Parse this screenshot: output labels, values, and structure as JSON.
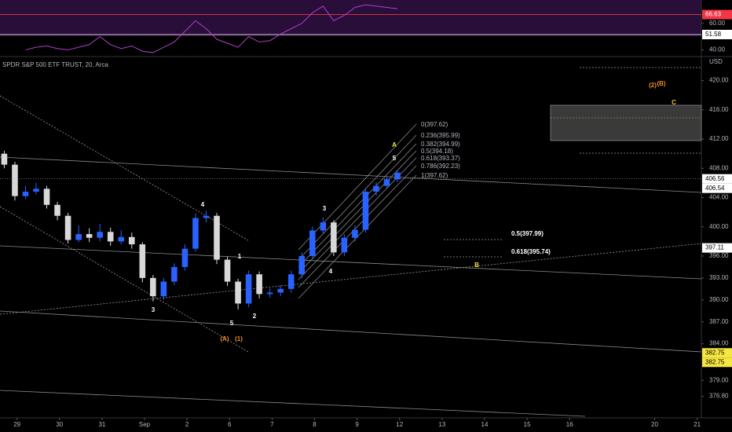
{
  "chart_data": {
    "type": "candlestick",
    "title": "SPDR S&P 500 ETF TRUST, 20, Arca",
    "currency": "USD",
    "up_color": "#2962ff",
    "down_color": "#d8d8d8",
    "ylim": [
      373,
      422
    ],
    "yticks": [
      {
        "value": 420,
        "label": "420.00"
      },
      {
        "value": 416,
        "label": "416.00"
      },
      {
        "value": 412,
        "label": "412.00"
      },
      {
        "value": 408,
        "label": "408.00"
      },
      {
        "value": 404,
        "label": "404.00"
      },
      {
        "value": 400,
        "label": "400.00"
      },
      {
        "value": 396,
        "label": "396.00"
      },
      {
        "value": 393,
        "label": "393.00"
      },
      {
        "value": 390,
        "label": "390.00"
      },
      {
        "value": 387,
        "label": "387.00"
      },
      {
        "value": 384,
        "label": "384.00"
      },
      {
        "value": 379,
        "label": "379.00"
      },
      {
        "value": 376.8,
        "label": "376.80"
      }
    ],
    "xlim": [
      -0.4,
      16.1
    ],
    "xticks": [
      {
        "value": 0,
        "label": "29"
      },
      {
        "value": 1,
        "label": "30"
      },
      {
        "value": 2,
        "label": "31"
      },
      {
        "value": 3,
        "label": "Sep"
      },
      {
        "value": 4,
        "label": "2"
      },
      {
        "value": 5,
        "label": "6"
      },
      {
        "value": 6,
        "label": "7"
      },
      {
        "value": 7,
        "label": "8"
      },
      {
        "value": 8,
        "label": "9"
      },
      {
        "value": 9,
        "label": "12"
      },
      {
        "value": 10,
        "label": "13"
      },
      {
        "value": 11,
        "label": "14"
      },
      {
        "value": 12,
        "label": "15"
      },
      {
        "value": 13,
        "label": "16"
      },
      {
        "value": 15,
        "label": "20"
      },
      {
        "value": 16,
        "label": "21"
      }
    ],
    "x": [
      -0.3,
      -0.05,
      0.2,
      0.45,
      0.7,
      0.95,
      1.2,
      1.45,
      1.7,
      1.95,
      2.2,
      2.45,
      2.7,
      2.95,
      3.2,
      3.45,
      3.7,
      3.95,
      4.2,
      4.45,
      4.7,
      4.95,
      5.2,
      5.45,
      5.7,
      5.95,
      6.2,
      6.45,
      6.7,
      6.95,
      7.2,
      7.45,
      7.7,
      7.95,
      8.2,
      8.45,
      8.7,
      8.95
    ],
    "open": [
      410.0,
      408.5,
      404.2,
      404.8,
      405.2,
      403.0,
      401.5,
      398.2,
      399.0,
      398.5,
      399.3,
      398.0,
      398.6,
      397.6,
      393.0,
      390.5,
      392.5,
      394.5,
      397.0,
      401.2,
      401.5,
      395.5,
      392.5,
      389.5,
      393.5,
      390.8,
      391.0,
      391.5,
      393.5,
      396.0,
      399.5,
      400.6,
      396.5,
      398.5,
      399.6,
      404.8,
      405.6,
      406.5
    ],
    "high": [
      410.4,
      408.9,
      405.6,
      406.0,
      405.6,
      403.4,
      401.9,
      400.2,
      399.8,
      400.4,
      399.9,
      399.5,
      399.2,
      397.9,
      393.4,
      393.0,
      395.0,
      397.6,
      401.8,
      402.2,
      401.9,
      395.9,
      392.9,
      394.0,
      393.9,
      391.6,
      392.0,
      394.0,
      396.5,
      400.0,
      401.3,
      400.9,
      399.0,
      400.2,
      405.3,
      406.1,
      406.9,
      407.8
    ],
    "low": [
      408.0,
      403.6,
      403.8,
      404.4,
      402.5,
      400.9,
      397.7,
      397.9,
      397.9,
      398.0,
      397.4,
      397.6,
      397.0,
      392.4,
      389.8,
      390.0,
      392.0,
      394.0,
      396.6,
      400.6,
      394.9,
      391.9,
      388.7,
      389.0,
      390.2,
      390.3,
      390.5,
      391.0,
      393.0,
      395.6,
      399.0,
      396.0,
      396.0,
      398.0,
      399.2,
      404.3,
      405.2,
      406.1
    ],
    "close": [
      408.5,
      404.2,
      404.8,
      405.2,
      403.0,
      401.5,
      398.2,
      399.0,
      398.5,
      399.3,
      398.0,
      398.6,
      397.6,
      393.0,
      390.5,
      392.5,
      394.5,
      397.0,
      401.2,
      401.5,
      395.5,
      392.5,
      389.5,
      393.5,
      390.8,
      391.0,
      391.5,
      393.5,
      396.0,
      399.5,
      400.6,
      396.5,
      398.5,
      399.6,
      404.8,
      405.6,
      406.5,
      407.4
    ],
    "price_tags": [
      406.56,
      406.54,
      397.11,
      382.75,
      382.75
    ],
    "price_tag_colors": [
      "#ffffff",
      "#ffffff",
      "#ffffff",
      "#f5e642",
      "#f5e642"
    ],
    "annotations": [
      {
        "text": "4",
        "color": "#ffffff"
      },
      {
        "text": "1",
        "color": "#ffffff"
      },
      {
        "text": "3",
        "color": "#ffffff"
      },
      {
        "text": "5",
        "color": "#ffffff"
      },
      {
        "text": "2",
        "color": "#ffffff"
      },
      {
        "text": "3",
        "color": "#ffffff"
      },
      {
        "text": "4",
        "color": "#ffffff"
      },
      {
        "text": "5",
        "color": "#ffffff"
      },
      {
        "text": "A",
        "color": "#f5e642"
      },
      {
        "text": "B",
        "color": "#f5e642"
      },
      {
        "text": "C",
        "color": "#f5c542"
      },
      {
        "text": "(A)",
        "color": "#f08c1e"
      },
      {
        "text": "(1)",
        "color": "#f08c1e"
      },
      {
        "text": "(2)",
        "color": "#f08c1e"
      },
      {
        "text": "(B)",
        "color": "#f08c1e"
      }
    ],
    "fib_labels": [
      "0(397.62)",
      "0.236(395.99)",
      "0.382(394.99)",
      "0.5(394.18)",
      "0.618(393.37)",
      "0.786(392.23)",
      "1(397.62)"
    ],
    "retracement_labels": [
      "0.5(397.99)",
      "0.618(395.74)"
    ],
    "rsi": {
      "ylim": [
        35,
        77.6
      ],
      "yticks": [
        {
          "value": 60,
          "label": "60.00"
        },
        {
          "value": 40,
          "label": "40.00"
        }
      ],
      "color": "#b03fc8",
      "values": [
        null,
        null,
        40,
        42,
        43,
        41,
        40,
        42,
        44,
        50,
        44,
        41,
        43,
        39,
        38,
        42,
        46,
        54,
        62,
        56,
        48,
        45,
        42,
        50,
        46,
        47,
        52,
        56,
        60,
        68,
        73,
        62,
        66,
        72,
        74,
        73,
        72,
        71
      ],
      "tags": [
        66.63,
        51.58
      ],
      "tag_colors": [
        "#f23645",
        "#ffffff"
      ]
    }
  }
}
